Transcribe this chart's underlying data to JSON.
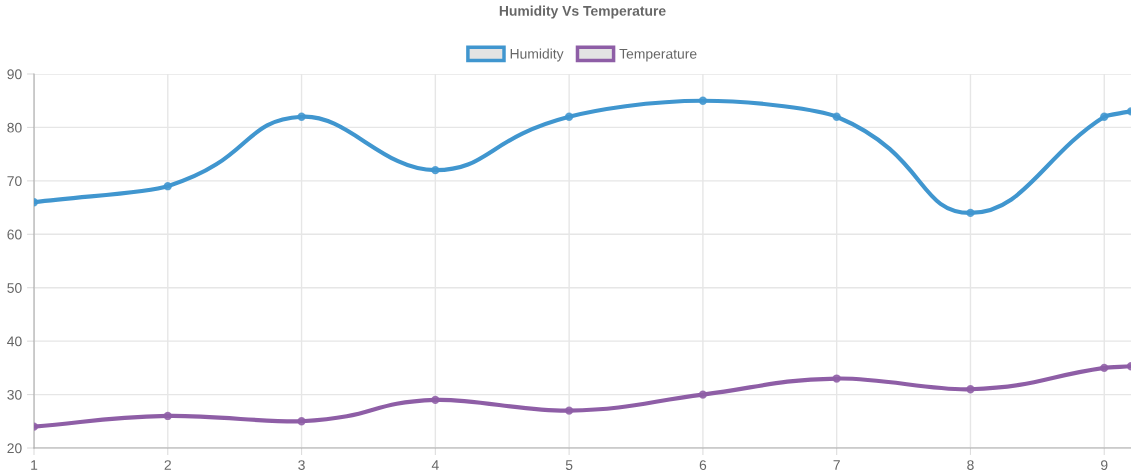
{
  "chart_data": {
    "type": "line",
    "title": "Humidity Vs Temperature",
    "x": [
      1,
      2,
      3,
      4,
      5,
      6,
      7,
      8,
      9,
      9.2
    ],
    "series": [
      {
        "name": "Humidity",
        "color": "#4096cf",
        "values": [
          66,
          69,
          82,
          72,
          82,
          85,
          82,
          64,
          82,
          83
        ]
      },
      {
        "name": "Temperature",
        "color": "#8e5ea6",
        "values": [
          24,
          26,
          25,
          29,
          27,
          30,
          33,
          31,
          35,
          35.3
        ]
      }
    ],
    "xlim": [
      1,
      9.2
    ],
    "xticks": [
      1,
      2,
      3,
      4,
      5,
      6,
      7,
      8,
      9
    ],
    "ylim": [
      20,
      90
    ],
    "yticks": [
      20,
      30,
      40,
      50,
      60,
      70,
      80,
      90
    ],
    "grid": true,
    "legend": "top",
    "marker": "circle",
    "line_style": "solid"
  }
}
